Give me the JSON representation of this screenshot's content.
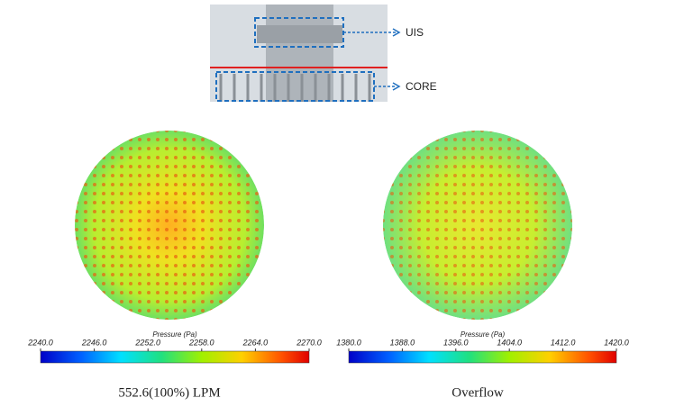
{
  "diagram": {
    "labels": [
      "UIS",
      "CORE"
    ]
  },
  "panels": [
    {
      "colorbar": {
        "title": "Pressure (Pa)",
        "lim": [
          2240,
          2270
        ],
        "ticks": [
          {
            "value": 2240,
            "label": "2240.0"
          },
          {
            "value": 2246,
            "label": "2246.0"
          },
          {
            "value": 2252,
            "label": "2252.0"
          },
          {
            "value": 2258,
            "label": "2258.0"
          },
          {
            "value": 2264,
            "label": "2264.0"
          },
          {
            "value": 2270,
            "label": "2270.0"
          }
        ]
      },
      "caption": "552.6(100%) LPM"
    },
    {
      "colorbar": {
        "title": "Pressure (Pa)",
        "lim": [
          1380,
          1420
        ],
        "ticks": [
          {
            "value": 1380,
            "label": "1380.0"
          },
          {
            "value": 1388,
            "label": "1388.0"
          },
          {
            "value": 1396,
            "label": "1396.0"
          },
          {
            "value": 1404,
            "label": "1404.0"
          },
          {
            "value": 1412,
            "label": "1412.0"
          },
          {
            "value": 1420,
            "label": "1420.0"
          }
        ]
      },
      "caption": "Overflow"
    }
  ]
}
